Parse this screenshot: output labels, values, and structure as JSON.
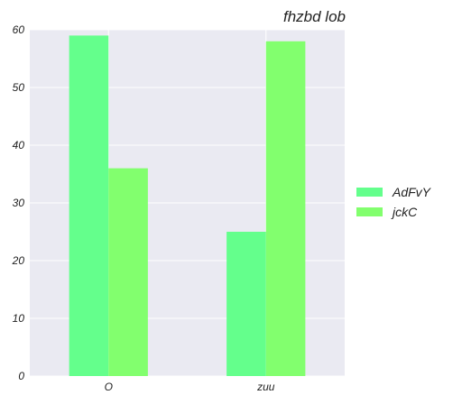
{
  "chart_data": {
    "type": "bar",
    "title": "fhzbd lob",
    "xlabel": "",
    "ylabel": "",
    "categories": [
      "O",
      "zuu"
    ],
    "series": [
      {
        "name": "AdFvY",
        "values": [
          59,
          25
        ],
        "color": "#64ff8c"
      },
      {
        "name": "jckC",
        "values": [
          36,
          58
        ],
        "color": "#82ff6e"
      }
    ],
    "ylim": [
      0,
      60
    ],
    "yticks": [
      0,
      10,
      20,
      30,
      40,
      50,
      60
    ],
    "grid": true,
    "legend_position": "right",
    "background_color": "#eaeaf2"
  }
}
